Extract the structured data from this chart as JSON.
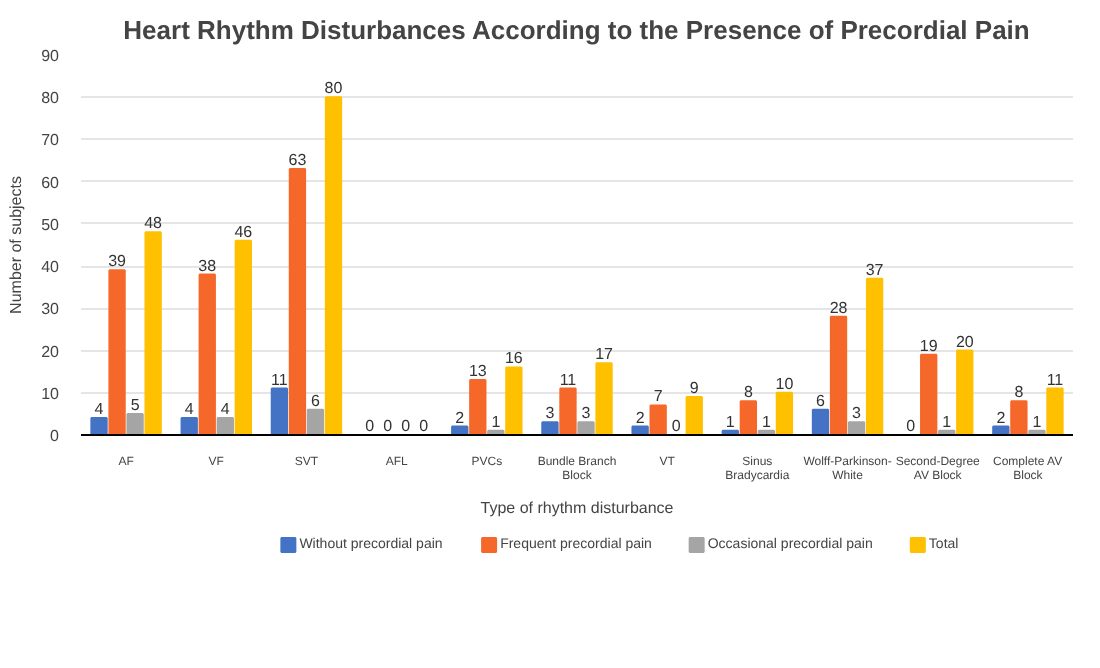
{
  "chart_data": {
    "type": "bar",
    "title": "Heart Rhythm Disturbances According to the Presence of Precordial Pain",
    "xlabel": "Type of rhythm disturbance",
    "ylabel": "Number of subjects",
    "categories": [
      "AF",
      "VF",
      "SVT",
      "AFL",
      "PVCs",
      "Bundle Branch Block",
      "VT",
      "Sinus Bradycardia",
      "Wolff-Parkinson-White",
      "Second-Degree AV Block",
      "Complete AV Block"
    ],
    "series": [
      {
        "name": "Without precordial pain",
        "color": "#4472c4",
        "values": [
          4,
          4,
          11,
          0,
          2,
          3,
          2,
          1,
          6,
          0,
          2
        ]
      },
      {
        "name": "Frequent precordial pain",
        "color": "#f5682a",
        "values": [
          39,
          38,
          63,
          0,
          13,
          11,
          7,
          8,
          28,
          19,
          8
        ]
      },
      {
        "name": "Occasional precordial pain",
        "color": "#a5a5a5",
        "values": [
          5,
          4,
          6,
          0,
          1,
          3,
          0,
          1,
          3,
          1,
          1
        ]
      },
      {
        "name": "Total",
        "color": "#ffc000",
        "values": [
          48,
          46,
          80,
          0,
          16,
          17,
          9,
          10,
          37,
          20,
          11
        ]
      }
    ],
    "ylim": [
      0,
      90
    ],
    "yticks": [
      0,
      10,
      20,
      30,
      40,
      50,
      60,
      70,
      80,
      90
    ],
    "grid": "y",
    "legend": "bottom",
    "data_labels": true
  }
}
